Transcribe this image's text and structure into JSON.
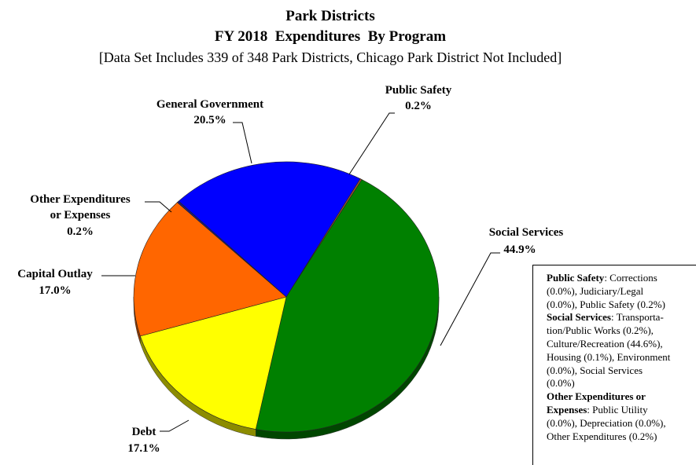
{
  "chart_data": {
    "type": "pie",
    "title": "Park Districts",
    "subtitle": "FY 2018  Expenditures  By Program",
    "subtitle2": "[Data Set Includes 339 of 348 Park Districts, Chicago Park District Not Included]",
    "slices": [
      {
        "name": "Public Safety",
        "value": 0.2,
        "label": "0.2%",
        "color": "#a0522d"
      },
      {
        "name": "Social Services",
        "value": 44.9,
        "label": "44.9%",
        "color": "#008000"
      },
      {
        "name": "Debt",
        "value": 17.1,
        "label": "17.1%",
        "color": "#ffff00"
      },
      {
        "name": "Capital Outlay",
        "value": 17.0,
        "label": "17.0%",
        "color": "#ff6600"
      },
      {
        "name": "Other Expenditures or Expenses",
        "value": 0.2,
        "label": "0.2%",
        "color": "#1a1a8c"
      },
      {
        "name": "General Government",
        "value": 20.5,
        "label": "20.5%",
        "color": "#0000ff"
      }
    ]
  },
  "labels": {
    "public_safety": {
      "line1": "Public Safety",
      "line2": "0.2%"
    },
    "social_services": {
      "line1": "Social Services",
      "line2": "44.9%"
    },
    "debt": {
      "line1": "Debt",
      "line2": "17.1%"
    },
    "capital_outlay": {
      "line1": "Capital Outlay",
      "line2": "17.0%"
    },
    "other": {
      "line1": "Other Expenditures",
      "line2": "or Expenses",
      "line3": "0.2%"
    },
    "general_government": {
      "line1": "General Government",
      "line2": "20.5%"
    }
  },
  "note": {
    "lines": [
      [
        {
          "b": "Public Safety"
        },
        {
          "t": ": Corrections"
        }
      ],
      [
        {
          "t": "(0.0%), Judiciary/Legal"
        }
      ],
      [
        {
          "t": "(0.0%), Public Safety (0.2%)"
        }
      ],
      [
        {
          "b": "Social Services"
        },
        {
          "t": ": Transporta-"
        }
      ],
      [
        {
          "t": "tion/Public Works (0.2%),"
        }
      ],
      [
        {
          "t": "Culture/Recreation (44.6%),"
        }
      ],
      [
        {
          "t": "Housing (0.1%), Environment"
        }
      ],
      [
        {
          "t": "(0.0%), Social Services"
        }
      ],
      [
        {
          "t": "(0.0%)"
        }
      ],
      [
        {
          "b": "Other Expenditures or"
        }
      ],
      [
        {
          "b": "Expenses"
        },
        {
          "t": ": Public Utility"
        }
      ],
      [
        {
          "t": "(0.0%), Depreciation (0.0%),"
        }
      ],
      [
        {
          "t": "Other Expenditures (0.2%)"
        }
      ]
    ]
  }
}
